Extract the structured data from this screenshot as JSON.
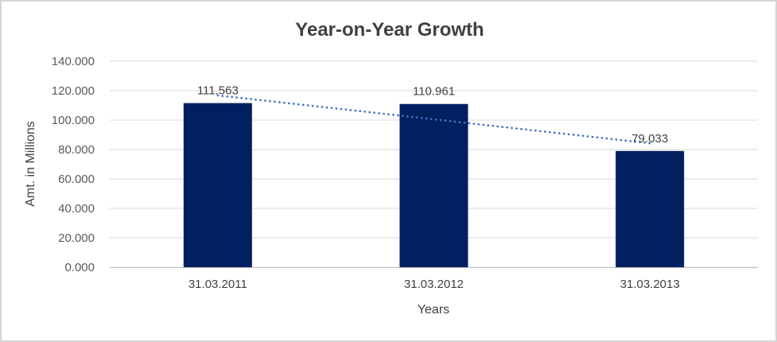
{
  "window": {
    "background": "#ffffff",
    "frame_border_color": "#d5d5d5"
  },
  "chart_data": {
    "type": "bar",
    "title": "Year-on-Year Growth",
    "xlabel": "Years",
    "ylabel": "Amt. in Millions",
    "categories": [
      "31.03.2011",
      "31.03.2012",
      "31.03.2013"
    ],
    "values": [
      111.563,
      110.961,
      79.033
    ],
    "value_labels": [
      "111.563",
      "110.961",
      "79.033"
    ],
    "ylim": [
      0,
      140
    ],
    "ytick_step": 20,
    "ytick_labels": [
      "0.000",
      "20.000",
      "40.000",
      "60.000",
      "80.000",
      "100.000",
      "120.000",
      "140.000"
    ],
    "grid": true,
    "legend_position": "none",
    "trendline": {
      "kind": "linear",
      "line_style": "dotted",
      "color": "#4472c4"
    },
    "colors": {
      "bar": "#002060",
      "gridline": "#d9d9d9",
      "axis_line": "#c4c4c4",
      "title_text": "#404040",
      "tick_text": "#595959",
      "category_text": "#404040",
      "value_label_text": "#404040",
      "axis_title_text": "#404040"
    }
  }
}
